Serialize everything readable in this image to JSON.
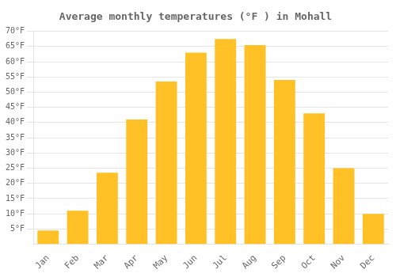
{
  "chart_data": {
    "type": "bar",
    "title": "Average monthly temperatures (°F ) in Mohall",
    "categories": [
      "Jan",
      "Feb",
      "Mar",
      "Apr",
      "May",
      "Jun",
      "Jul",
      "Aug",
      "Sep",
      "Oct",
      "Nov",
      "Dec"
    ],
    "values": [
      4.5,
      11,
      23.5,
      41,
      53.5,
      63,
      67.5,
      65.5,
      54,
      43,
      25,
      10
    ],
    "color": "#FFC125",
    "ylim": [
      0,
      70
    ],
    "yticks": [
      {
        "value": 5,
        "label": "5°F"
      },
      {
        "value": 10,
        "label": "10°F"
      },
      {
        "value": 15,
        "label": "15°F"
      },
      {
        "value": 20,
        "label": "20°F"
      },
      {
        "value": 25,
        "label": "25°F"
      },
      {
        "value": 30,
        "label": "30°F"
      },
      {
        "value": 35,
        "label": "35°F"
      },
      {
        "value": 40,
        "label": "40°F"
      },
      {
        "value": 45,
        "label": "45°F"
      },
      {
        "value": 50,
        "label": "50°F"
      },
      {
        "value": 55,
        "label": "55°F"
      },
      {
        "value": 60,
        "label": "60°F"
      },
      {
        "value": 65,
        "label": "65°F"
      },
      {
        "value": 70,
        "label": "70°F"
      }
    ],
    "grid": true
  }
}
